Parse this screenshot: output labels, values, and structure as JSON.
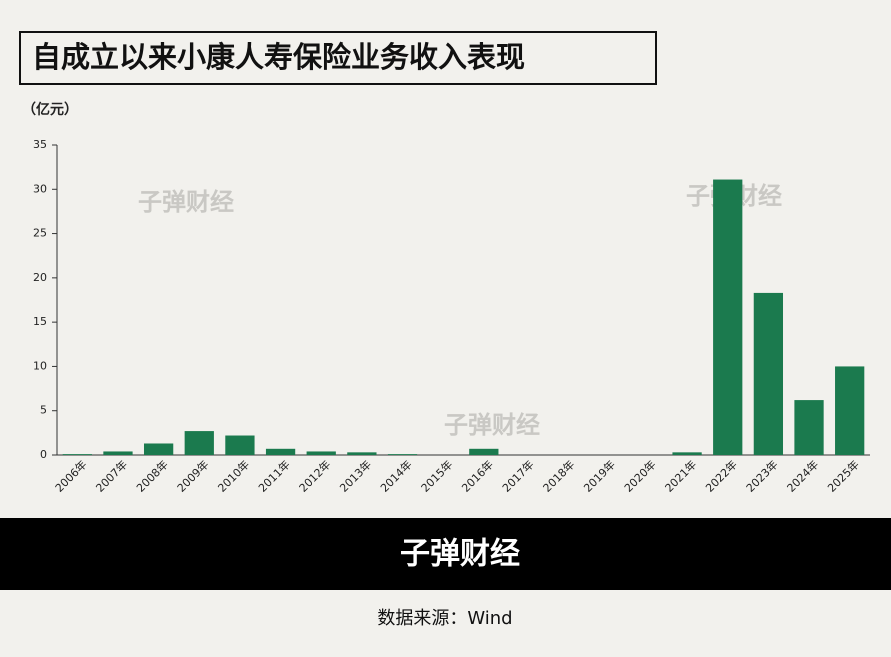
{
  "chart_data": {
    "type": "bar",
    "title": "自成立以来小康人寿保险业务收入表现",
    "unit": "（亿元）",
    "categories": [
      "2006年",
      "2007年",
      "2008年",
      "2009年",
      "2010年",
      "2011年",
      "2012年",
      "2013年",
      "2014年",
      "2015年",
      "2016年",
      "2017年",
      "2018年",
      "2019年",
      "2020年",
      "2021年",
      "2022年",
      "2023年",
      "2024年",
      "2025年"
    ],
    "values": [
      0.1,
      0.4,
      1.3,
      2.7,
      2.2,
      0.7,
      0.4,
      0.3,
      0.1,
      0,
      0.7,
      0,
      0,
      0,
      0,
      0.3,
      31.1,
      18.3,
      6.2,
      10.0
    ],
    "color": "#1b7a4e",
    "ylim": [
      0,
      35
    ],
    "yticks": [
      0,
      5,
      10,
      15,
      20,
      25,
      30,
      35
    ],
    "grid": false,
    "watermark": "子弹财经",
    "brand": "子弹财经",
    "source": "数据来源：Wind"
  }
}
